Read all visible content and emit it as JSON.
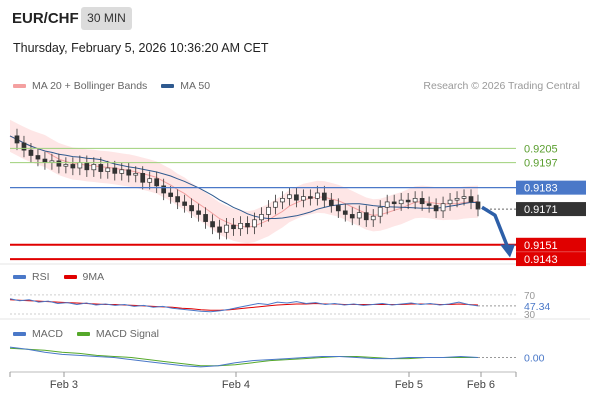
{
  "header": {
    "symbol": "EUR/CHF",
    "timeframe": "30 MIN",
    "datetime": "Thursday, February 5, 2026 10:36:20 AM CET",
    "copyright": "Research © 2026 Trading Central"
  },
  "colors": {
    "ma20": "#f4a0a0",
    "bollinger_band": "#fddede",
    "ma50": "#2f5a8f",
    "resistance": "#9ed07a",
    "support": "#e00000",
    "pivot": "#4a78c8",
    "current": "#333333",
    "rsi": "#4a78c8",
    "rsi_ma": "#e00000",
    "macd": "#4a78c8",
    "macd_signal": "#55a82a",
    "arrow": "#2d5fa8"
  },
  "chart_data": [
    {
      "type": "candlestick",
      "legend": [
        {
          "name": "MA 20 + Bollinger Bands",
          "color": "#f4a0a0"
        },
        {
          "name": "MA 50",
          "color": "#2f5a8f"
        }
      ],
      "x_tick_labels": [
        "Feb 3",
        "Feb 4",
        "Feb 5",
        "Feb 6"
      ],
      "ylim": [
        0.9138,
        0.9222
      ],
      "levels": [
        {
          "value": 0.9205,
          "label": "0.9205",
          "kind": "resistance"
        },
        {
          "value": 0.9197,
          "label": "0.9197",
          "kind": "resistance"
        },
        {
          "value": 0.9183,
          "label": "0.9183",
          "kind": "pivot"
        },
        {
          "value": 0.9171,
          "label": "0.9171",
          "kind": "current"
        },
        {
          "value": 0.9151,
          "label": "0.9151",
          "kind": "support"
        },
        {
          "value": 0.9143,
          "label": "0.9143",
          "kind": "support"
        }
      ],
      "trend_arrow": {
        "direction": "down",
        "from": 0.9172,
        "to": 0.9145
      },
      "close_series": [
        0.9212,
        0.9208,
        0.9204,
        0.9201,
        0.9199,
        0.9197,
        0.9198,
        0.9195,
        0.9196,
        0.9194,
        0.9197,
        0.9193,
        0.9196,
        0.9192,
        0.9194,
        0.9191,
        0.9193,
        0.919,
        0.9191,
        0.9186,
        0.9188,
        0.9184,
        0.918,
        0.9178,
        0.9175,
        0.9173,
        0.917,
        0.9168,
        0.9164,
        0.9161,
        0.9158,
        0.9162,
        0.916,
        0.9163,
        0.9161,
        0.9165,
        0.9168,
        0.9172,
        0.9175,
        0.9177,
        0.9179,
        0.9176,
        0.9178,
        0.9177,
        0.918,
        0.9176,
        0.9173,
        0.917,
        0.9168,
        0.9166,
        0.9169,
        0.9165,
        0.9167,
        0.9172,
        0.9175,
        0.9174,
        0.9176,
        0.9175,
        0.9177,
        0.9174,
        0.9173,
        0.917,
        0.9174,
        0.9176,
        0.9177,
        0.9178,
        0.9175,
        0.9171
      ]
    },
    {
      "type": "line",
      "legend": [
        {
          "name": "RSI",
          "color": "#4a78c8"
        },
        {
          "name": "9MA",
          "color": "#e00000"
        }
      ],
      "ylim": [
        28,
        74
      ],
      "levels": [
        {
          "value": 70,
          "label": "70"
        },
        {
          "value": 30,
          "label": "30"
        }
      ],
      "current_label": "47.34",
      "rsi_series": [
        62,
        58,
        60,
        55,
        57,
        52,
        54,
        50,
        53,
        49,
        51,
        48,
        50,
        46,
        48,
        44,
        46,
        42,
        40,
        38,
        36,
        35,
        37,
        40,
        44,
        48,
        52,
        50,
        55,
        53,
        56,
        52,
        54,
        50,
        52,
        49,
        51,
        48,
        50,
        52,
        49,
        51,
        53,
        50,
        52,
        49,
        51,
        55,
        50,
        47
      ],
      "ma_series": [
        60,
        59,
        58,
        57,
        56,
        55,
        54,
        53,
        52,
        51,
        50,
        50,
        49,
        48,
        47,
        46,
        45,
        44,
        42,
        41,
        39,
        38,
        38,
        39,
        41,
        43,
        45,
        47,
        49,
        50,
        51,
        51,
        52,
        51,
        51,
        50,
        50,
        50,
        50,
        50,
        50,
        50,
        51,
        51,
        51,
        50,
        50,
        51,
        50,
        49
      ]
    },
    {
      "type": "line",
      "legend": [
        {
          "name": "MACD",
          "color": "#4a78c8"
        },
        {
          "name": "MACD Signal",
          "color": "#55a82a"
        }
      ],
      "ylim": [
        -0.0012,
        0.0013
      ],
      "zero_label": "0.00",
      "macd_series": [
        0.001,
        0.0008,
        0.0005,
        0.0003,
        0.0002,
        0.0001,
        0.0,
        -0.0002,
        -0.0004,
        -0.0006,
        -0.0008,
        -0.0009,
        -0.0008,
        -0.0005,
        -0.0003,
        -0.0002,
        -0.0001,
        0.0,
        0.0001,
        0.0001,
        0.0,
        -0.0001,
        -0.0001,
        0.0,
        0.0,
        0.0,
        0.0001,
        0.0
      ],
      "signal_series": [
        0.0009,
        0.0008,
        0.0007,
        0.0005,
        0.0004,
        0.0002,
        0.0001,
        0.0,
        -0.0002,
        -0.0004,
        -0.0006,
        -0.0008,
        -0.0008,
        -0.0007,
        -0.0005,
        -0.0003,
        -0.0002,
        -0.0001,
        0.0,
        0.0001,
        0.0001,
        0.0,
        -0.0001,
        -0.0001,
        0.0,
        0.0,
        0.0,
        0.0
      ]
    }
  ]
}
